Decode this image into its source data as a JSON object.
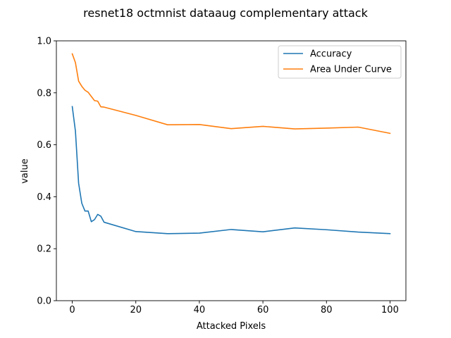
{
  "chart_data": {
    "type": "line",
    "title": "resnet18 octmnist dataaug complementary attack",
    "xlabel": "Attacked Pixels",
    "ylabel": "value",
    "xlim": [
      -5,
      105
    ],
    "ylim": [
      0.0,
      1.0
    ],
    "xticks": [
      0,
      20,
      40,
      60,
      80,
      100
    ],
    "yticks": [
      0.0,
      0.2,
      0.4,
      0.6,
      0.8,
      1.0
    ],
    "xtick_labels": [
      "0",
      "20",
      "40",
      "60",
      "80",
      "100"
    ],
    "ytick_labels": [
      "0.0",
      "0.2",
      "0.4",
      "0.6",
      "0.8",
      "1.0"
    ],
    "grid": false,
    "legend_position": "top-right",
    "series": [
      {
        "name": "Accuracy",
        "color": "#1f77b4",
        "x": [
          0,
          1,
          2,
          3,
          4,
          5,
          6,
          7,
          8,
          9,
          10,
          20,
          30,
          40,
          50,
          60,
          70,
          80,
          90,
          100
        ],
        "y": [
          0.747,
          0.652,
          0.452,
          0.375,
          0.345,
          0.345,
          0.304,
          0.312,
          0.332,
          0.325,
          0.302,
          0.266,
          0.258,
          0.26,
          0.274,
          0.265,
          0.28,
          0.273,
          0.264,
          0.258
        ]
      },
      {
        "name": "Area Under Curve",
        "color": "#ff7f0e",
        "x": [
          0,
          1,
          2,
          3,
          4,
          5,
          6,
          7,
          8,
          9,
          10,
          20,
          30,
          40,
          50,
          60,
          70,
          80,
          90,
          100
        ],
        "y": [
          0.95,
          0.916,
          0.845,
          0.825,
          0.81,
          0.802,
          0.786,
          0.77,
          0.768,
          0.746,
          0.745,
          0.713,
          0.677,
          0.678,
          0.662,
          0.671,
          0.661,
          0.664,
          0.668,
          0.644
        ]
      }
    ]
  }
}
